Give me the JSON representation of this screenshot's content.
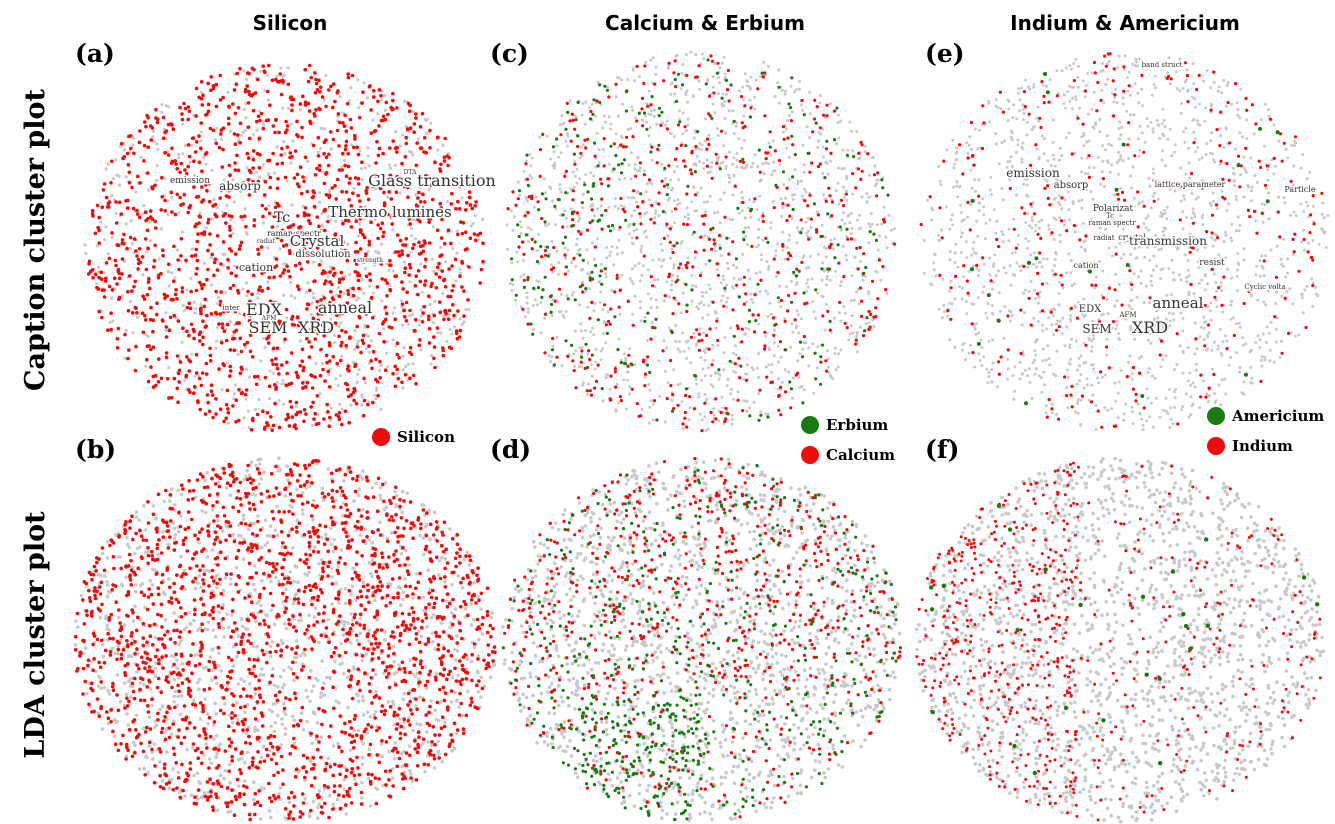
{
  "column_titles": [
    "Silicon",
    "Calcium & Erbium",
    "Indium & Americium"
  ],
  "row_labels": [
    "Caption cluster plot",
    "LDA cluster plot"
  ],
  "panels": [
    {
      "label": "(a)",
      "words": [
        "emission",
        "absorp",
        "Glass transition",
        "DTA",
        "Thermo lumines",
        "Tc",
        "raman spectr",
        "radiat",
        "Crystal",
        "dissolution",
        "strength",
        "cation",
        "inter",
        "EDX",
        "anneal",
        "AFM",
        "SEM",
        "XRD"
      ],
      "legend": [
        "Silicon"
      ]
    },
    {
      "label": "(b)"
    },
    {
      "label": "(c)",
      "legend": [
        "Erbium",
        "Calcium"
      ]
    },
    {
      "label": "(d)"
    },
    {
      "label": "(e)",
      "words": [
        "band struct",
        "emission",
        "absorp",
        "lattice parameter",
        "Particle",
        "Polarizat",
        "Tc",
        "raman spectr",
        "radiat",
        "crystal",
        "transmission",
        "resist",
        "cation",
        "Cyclic volta",
        "EDX",
        "AFM",
        "anneal",
        "SEM",
        "XRD"
      ],
      "legend": [
        "Americium",
        "Indium"
      ]
    },
    {
      "label": "(f)"
    }
  ]
}
